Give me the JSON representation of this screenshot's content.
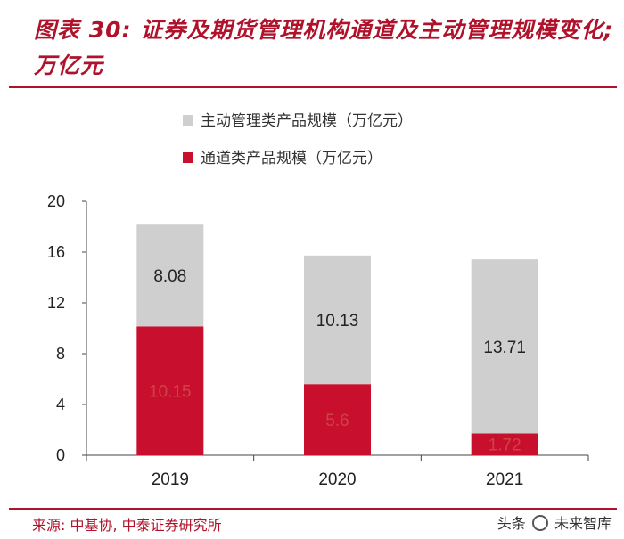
{
  "title": "图表 30: 证券及期货管理机构通道及主动管理规模变化; 万亿元",
  "source": "来源: 中基协, 中泰证券研究所",
  "watermark": {
    "left": "头条",
    "right": "未来智库"
  },
  "colors": {
    "accent": "#b0122b",
    "passive": "#c8102e",
    "active": "#cfcfcf"
  },
  "chart_data": {
    "type": "bar",
    "stacked": true,
    "categories": [
      "2019",
      "2020",
      "2021"
    ],
    "series": [
      {
        "name": "通道类产品规模（万亿元）",
        "color": "#c8102e",
        "values": [
          10.15,
          5.6,
          1.72
        ]
      },
      {
        "name": "主动管理类产品规模（万亿元）",
        "color": "#cfcfcf",
        "values": [
          8.08,
          10.13,
          13.71
        ]
      }
    ],
    "data_labels": [
      [
        "10.15",
        "5.6",
        "1.72"
      ],
      [
        "8.08",
        "10.13",
        "13.71"
      ]
    ],
    "ylim": [
      0,
      20
    ],
    "yticks": [
      "0",
      "4",
      "8",
      "12",
      "16",
      "20"
    ],
    "ytick_values": [
      0,
      4,
      8,
      12,
      16,
      20
    ],
    "legend": [
      {
        "label": "主动管理类产品规模（万亿元）",
        "color": "#cfcfcf"
      },
      {
        "label": "通道类产品规模（万亿元）",
        "color": "#c8102e"
      }
    ],
    "legend_position": "top-center",
    "xlabel": "",
    "ylabel": ""
  }
}
